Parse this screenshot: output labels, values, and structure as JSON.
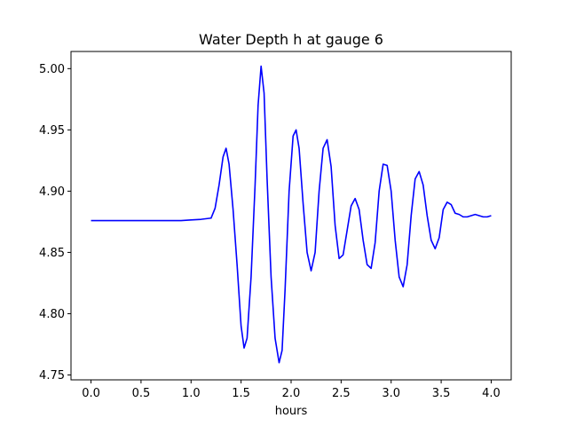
{
  "chart_data": {
    "type": "line",
    "title": "Water Depth h at gauge 6",
    "xlabel": "hours",
    "ylabel": "",
    "xlim": [
      -0.2,
      4.2
    ],
    "ylim": [
      4.746,
      5.014
    ],
    "xticks": [
      0.0,
      0.5,
      1.0,
      1.5,
      2.0,
      2.5,
      3.0,
      3.5,
      4.0
    ],
    "xtick_labels": [
      "0.0",
      "0.5",
      "1.0",
      "1.5",
      "2.0",
      "2.5",
      "3.0",
      "3.5",
      "4.0"
    ],
    "yticks": [
      4.75,
      4.8,
      4.85,
      4.9,
      4.95,
      5.0
    ],
    "ytick_labels": [
      "4.75",
      "4.80",
      "4.85",
      "4.90",
      "4.95",
      "5.00"
    ],
    "grid": false,
    "series": [
      {
        "color": "#0000ff",
        "x": [
          0.0,
          0.3,
          0.6,
          0.9,
          1.0,
          1.1,
          1.2,
          1.24,
          1.28,
          1.32,
          1.35,
          1.38,
          1.42,
          1.46,
          1.5,
          1.53,
          1.56,
          1.6,
          1.64,
          1.67,
          1.7,
          1.73,
          1.76,
          1.8,
          1.84,
          1.88,
          1.91,
          1.94,
          1.98,
          2.02,
          2.05,
          2.08,
          2.12,
          2.16,
          2.2,
          2.24,
          2.28,
          2.32,
          2.36,
          2.4,
          2.44,
          2.48,
          2.52,
          2.56,
          2.6,
          2.64,
          2.68,
          2.72,
          2.76,
          2.8,
          2.84,
          2.88,
          2.92,
          2.96,
          3.0,
          3.04,
          3.08,
          3.12,
          3.16,
          3.2,
          3.24,
          3.28,
          3.32,
          3.36,
          3.4,
          3.44,
          3.48,
          3.52,
          3.56,
          3.6,
          3.64,
          3.68,
          3.72,
          3.76,
          3.8,
          3.84,
          3.88,
          3.92,
          3.96,
          4.0
        ],
        "y": [
          4.876,
          4.876,
          4.876,
          4.876,
          4.8765,
          4.877,
          4.878,
          4.886,
          4.905,
          4.928,
          4.935,
          4.922,
          4.885,
          4.84,
          4.79,
          4.772,
          4.78,
          4.83,
          4.905,
          4.97,
          5.002,
          4.98,
          4.91,
          4.83,
          4.78,
          4.76,
          4.77,
          4.82,
          4.9,
          4.945,
          4.95,
          4.935,
          4.89,
          4.85,
          4.835,
          4.85,
          4.9,
          4.935,
          4.942,
          4.92,
          4.872,
          4.845,
          4.848,
          4.868,
          4.888,
          4.894,
          4.885,
          4.86,
          4.84,
          4.837,
          4.858,
          4.9,
          4.922,
          4.921,
          4.9,
          4.86,
          4.83,
          4.822,
          4.84,
          4.88,
          4.91,
          4.916,
          4.905,
          4.88,
          4.86,
          4.853,
          4.862,
          4.885,
          4.891,
          4.889,
          4.882,
          4.881,
          4.879,
          4.879,
          4.88,
          4.881,
          4.88,
          4.879,
          4.879,
          4.88
        ]
      }
    ]
  }
}
